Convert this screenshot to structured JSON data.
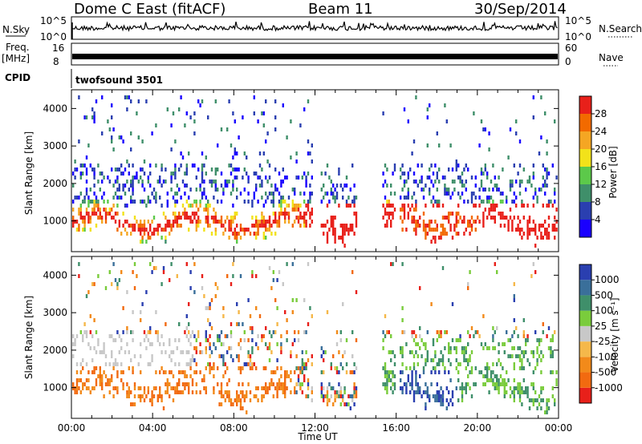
{
  "header": {
    "station": "Dome C East (fitACF)",
    "beam": "Beam 11",
    "date": "30/Sep/2014"
  },
  "status_panels": {
    "nsky": {
      "label": "N.Sky",
      "ticks": [
        "10^5",
        "10^0"
      ]
    },
    "nsearch": {
      "label": "N.Search",
      "ticks": [
        "10^5",
        "10^0"
      ]
    },
    "freq": {
      "label_line1": "Freq.",
      "label_line2": "[MHz]",
      "ticks": [
        "16",
        "8"
      ]
    },
    "nave": {
      "label": "Nave",
      "ticks": [
        "60",
        "0"
      ]
    },
    "cpid": {
      "label": "CPID",
      "value": "twofsound 3501"
    }
  },
  "colors": {
    "power_scale": [
      "#1a00ff",
      "#2a3fb0",
      "#3f8f6a",
      "#5cc94a",
      "#f2e21a",
      "#f5a623",
      "#f26a00",
      "#e8201a"
    ],
    "velocity_scale": [
      "#2a3fb0",
      "#3a6f9a",
      "#3f8f6a",
      "#7acc3c",
      "#c8c8c8",
      "#f5b84a",
      "#f28a1a",
      "#f26a10",
      "#e8201a"
    ]
  },
  "chart_data": [
    {
      "type": "heatmap",
      "name": "power",
      "ylabel": "Slant Range [km]",
      "ylim": [
        180,
        4500
      ],
      "y_ticks": [
        "1000",
        "2000",
        "3000",
        "4000"
      ],
      "x_ticks": [
        "00:00",
        "04:00",
        "08:00",
        "12:00",
        "16:00",
        "20:00",
        "00:00"
      ],
      "colorbar": {
        "label": "Power [dB]",
        "ticks": [
          "4",
          "8",
          "12",
          "16",
          "20",
          "24",
          "28"
        ]
      }
    },
    {
      "type": "heatmap",
      "name": "velocity",
      "ylabel": "Slant Range [km]",
      "xlabel": "Time UT",
      "ylim": [
        180,
        4500
      ],
      "y_ticks": [
        "1000",
        "2000",
        "3000",
        "4000"
      ],
      "x_ticks": [
        "00:00",
        "04:00",
        "08:00",
        "12:00",
        "16:00",
        "20:00",
        "00:00"
      ],
      "colorbar": {
        "label": "Velocity [m s⁻¹]",
        "ticks": [
          "1000",
          "500",
          "100",
          "25",
          "-25",
          "-100",
          "-500",
          "-1000"
        ]
      }
    }
  ]
}
